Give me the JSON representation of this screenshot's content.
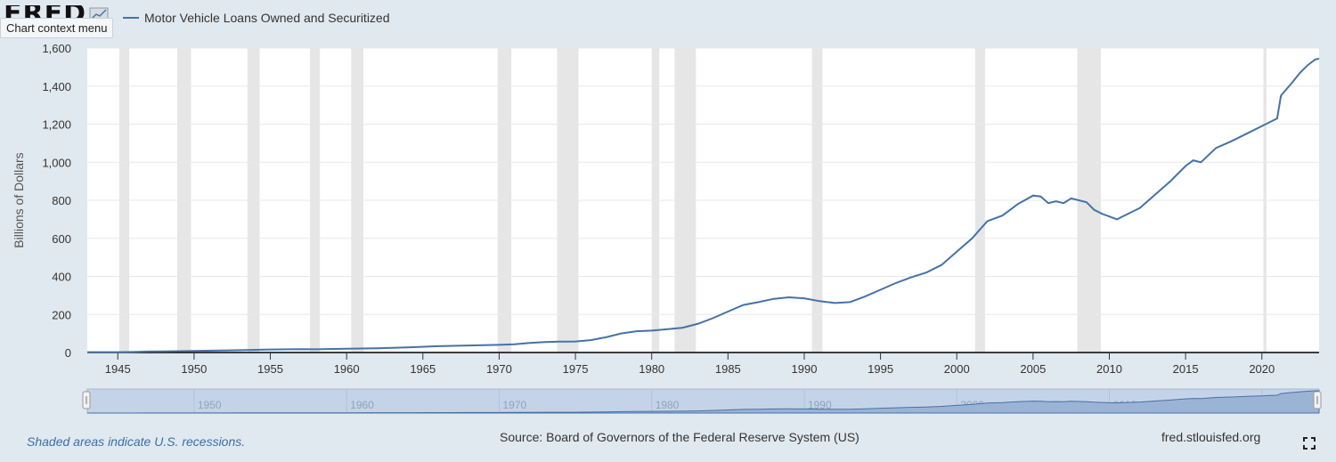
{
  "header": {
    "logo_text": "FRED",
    "context_menu_tooltip": "Chart context menu",
    "legend_label": "Motor Vehicle Loans Owned and Securitized",
    "series_color": "#4572a7"
  },
  "footer": {
    "recession_note": "Shaded areas indicate U.S. recessions.",
    "source": "Source: Board of Governors of the Federal Reserve System (US)",
    "site": "fred.stlouisfed.org"
  },
  "colors": {
    "background": "#e1e9f0",
    "plot_background": "#ffffff",
    "recession_shade": "#e6e6e6",
    "navigator_fill": "#bfcfe6"
  },
  "chart_data": {
    "type": "line",
    "title": "",
    "xlabel": "",
    "ylabel": "Billions of Dollars",
    "xlim": [
      1943.0,
      2023.75
    ],
    "ylim": [
      0,
      1600
    ],
    "x_ticks": [
      1945,
      1950,
      1955,
      1960,
      1965,
      1970,
      1975,
      1980,
      1985,
      1990,
      1995,
      2000,
      2005,
      2010,
      2015,
      2020
    ],
    "y_ticks": [
      0,
      200,
      400,
      600,
      800,
      1000,
      1200,
      1400,
      1600
    ],
    "y_tick_labels": [
      "0",
      "200",
      "400",
      "600",
      "800",
      "1,000",
      "1,200",
      "1,400",
      "1,600"
    ],
    "navigator_ticks": [
      1950,
      1960,
      1970,
      1980,
      1990,
      2000,
      2010,
      2020
    ],
    "grid": true,
    "legend": "top-left",
    "recessions": [
      [
        1945.1,
        1945.75
      ],
      [
        1948.9,
        1949.8
      ],
      [
        1953.5,
        1954.3
      ],
      [
        1957.6,
        1958.25
      ],
      [
        1960.3,
        1961.1
      ],
      [
        1969.9,
        1970.8
      ],
      [
        1973.8,
        1975.2
      ],
      [
        1980.0,
        1980.5
      ],
      [
        1981.5,
        1982.9
      ],
      [
        1990.5,
        1991.2
      ],
      [
        2001.2,
        2001.85
      ],
      [
        2007.9,
        2009.45
      ],
      [
        2020.1,
        2020.3
      ]
    ],
    "series": [
      {
        "name": "Motor Vehicle Loans Owned and Securitized",
        "x": [
          1943.0,
          1945.0,
          1946.0,
          1947.0,
          1948.0,
          1950.0,
          1953.0,
          1955.0,
          1957.0,
          1958.0,
          1960.0,
          1962.0,
          1964.0,
          1966.0,
          1968.0,
          1970.0,
          1971.0,
          1972.0,
          1973.0,
          1974.0,
          1975.0,
          1976.0,
          1977.0,
          1978.0,
          1979.0,
          1980.0,
          1981.0,
          1982.0,
          1983.0,
          1984.0,
          1985.0,
          1986.0,
          1987.0,
          1988.0,
          1989.0,
          1990.0,
          1991.0,
          1992.0,
          1993.0,
          1994.0,
          1995.0,
          1996.0,
          1997.0,
          1998.0,
          1999.0,
          2000.0,
          2001.0,
          2002.0,
          2003.0,
          2004.0,
          2005.0,
          2005.5,
          2006.0,
          2006.5,
          2007.0,
          2007.5,
          2008.0,
          2008.5,
          2009.0,
          2009.5,
          2010.0,
          2010.5,
          2011.0,
          2012.0,
          2013.0,
          2014.0,
          2015.0,
          2015.5,
          2016.0,
          2017.0,
          2018.0,
          2019.0,
          2020.0,
          2020.5,
          2021.0,
          2021.25,
          2022.0,
          2022.5,
          2023.0,
          2023.5,
          2023.75
        ],
        "values": [
          2,
          2,
          3,
          5,
          6,
          8,
          12,
          16,
          18,
          17,
          20,
          22,
          27,
          33,
          37,
          40,
          43,
          50,
          55,
          57,
          58,
          65,
          80,
          100,
          112,
          115,
          122,
          130,
          150,
          180,
          215,
          250,
          265,
          282,
          290,
          285,
          270,
          260,
          265,
          295,
          330,
          365,
          395,
          420,
          460,
          530,
          600,
          690,
          720,
          780,
          825,
          820,
          785,
          795,
          785,
          810,
          800,
          790,
          750,
          730,
          715,
          700,
          720,
          760,
          830,
          900,
          980,
          1010,
          1000,
          1075,
          1110,
          1150,
          1190,
          1210,
          1230,
          1350,
          1420,
          1470,
          1510,
          1540,
          1545
        ]
      }
    ]
  }
}
